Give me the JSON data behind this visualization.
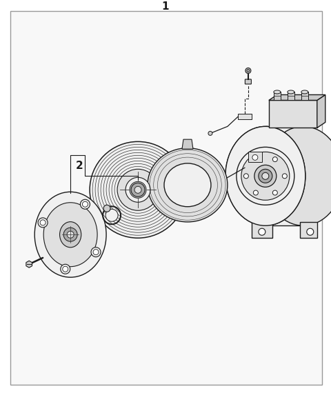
{
  "bg_color": "#ffffff",
  "panel_bg": "#f8f8f8",
  "border_color": "#999999",
  "lc": "#1a1a1a",
  "lc_thin": "#333333",
  "fc_white": "#ffffff",
  "fc_light": "#f0f0f0",
  "fc_mid": "#e0e0e0",
  "fc_dark": "#cccccc",
  "fc_vdark": "#aaaaaa",
  "label_1": "1",
  "label_2": "2",
  "fig_width": 4.8,
  "fig_height": 5.7,
  "dpi": 100
}
